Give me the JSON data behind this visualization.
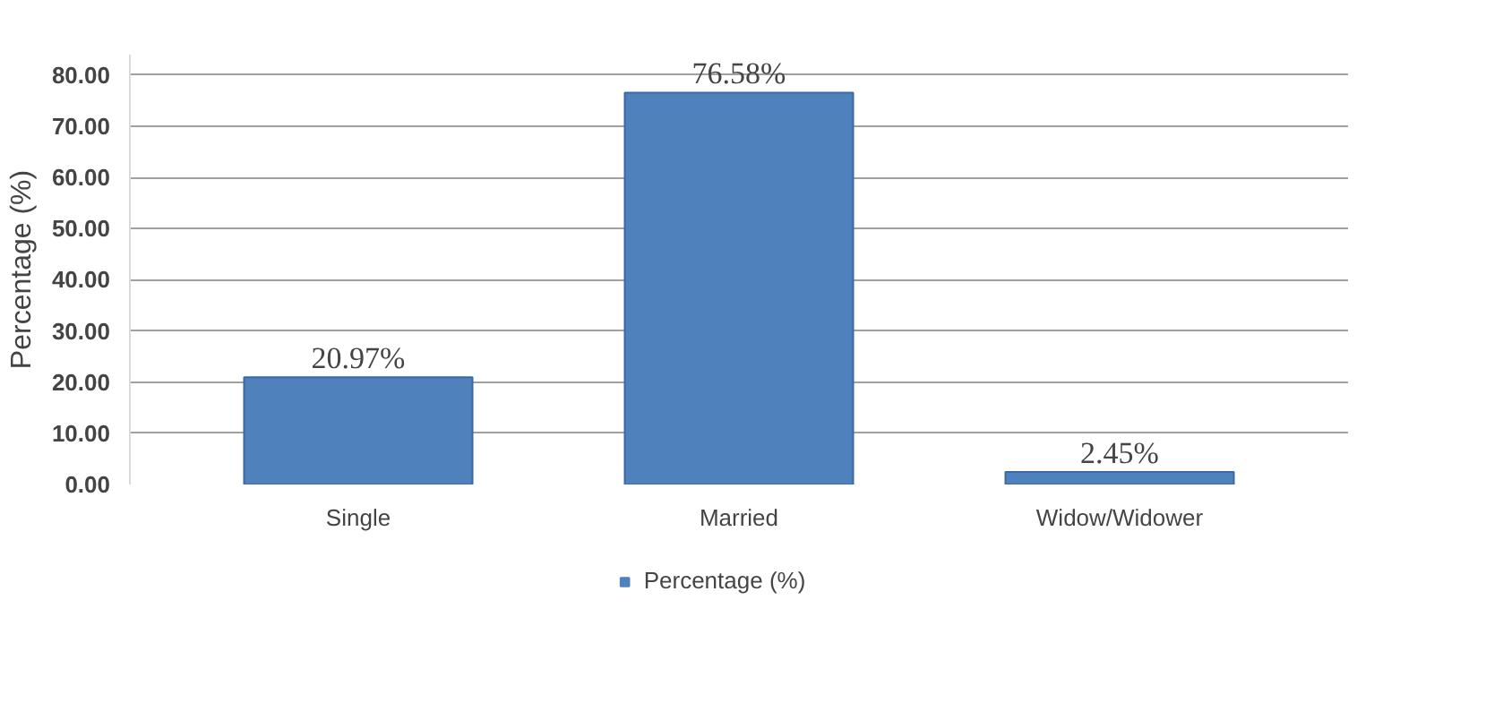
{
  "chart_data": {
    "type": "bar",
    "ylabel": "Percentage (%)",
    "categories": [
      "Single",
      "Married",
      "Widow/Widower"
    ],
    "series": [
      {
        "name": "Percentage (%)",
        "color": "#4f81bd",
        "values": [
          20.97,
          76.58,
          2.45
        ]
      }
    ],
    "value_labels": [
      "20.97%",
      "76.58%",
      "2.45%"
    ],
    "ylim": [
      0,
      84
    ],
    "yticks": [
      {
        "value": 0,
        "label": "0.00"
      },
      {
        "value": 10,
        "label": "10.00"
      },
      {
        "value": 20,
        "label": "20.00"
      },
      {
        "value": 30,
        "label": "30.00"
      },
      {
        "value": 40,
        "label": "40.00"
      },
      {
        "value": 50,
        "label": "50.00"
      },
      {
        "value": 60,
        "label": "60.00"
      },
      {
        "value": 70,
        "label": "70.00"
      },
      {
        "value": 80,
        "label": "80.00"
      }
    ],
    "grid": "y",
    "legend": "bottom"
  }
}
